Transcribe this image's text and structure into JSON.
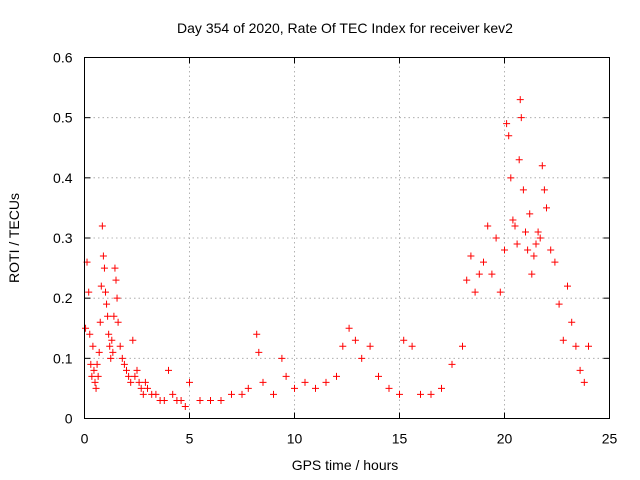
{
  "chart_data": {
    "type": "scatter",
    "title": "Day 354 of 2020, Rate Of TEC Index for receiver kev2",
    "xlabel": "GPS time / hours",
    "ylabel": "ROTI / TECUs",
    "xlim": [
      0,
      25
    ],
    "ylim": [
      0,
      0.6
    ],
    "x_ticks": [
      "0",
      "5",
      "10",
      "15",
      "20",
      "25"
    ],
    "y_ticks": [
      "0",
      "0.1",
      "0.2",
      "0.3",
      "0.4",
      "0.5",
      "0.6"
    ],
    "grid": true,
    "marker": "plus",
    "colors": {
      "points": "#ff0000",
      "grid": "#a0a0a0",
      "axis": "#000000"
    },
    "series": [
      {
        "x": [
          0.05,
          0.12,
          0.2,
          0.25,
          0.3,
          0.35,
          0.4,
          0.45,
          0.5,
          0.55,
          0.6,
          0.65,
          0.7,
          0.75,
          0.8,
          0.85,
          0.9,
          0.95,
          1.0,
          1.05,
          1.1,
          1.15,
          1.2,
          1.25,
          1.3,
          1.35,
          1.4,
          1.45,
          1.5,
          1.55,
          1.6,
          1.7,
          1.8,
          1.9,
          2.0,
          2.1,
          2.2,
          2.3,
          2.4,
          2.5,
          2.6,
          2.7,
          2.8,
          2.9,
          3.0,
          3.2,
          3.4,
          3.6,
          3.8,
          4.0,
          4.2,
          4.4,
          4.6,
          4.8,
          5.0,
          5.5,
          6.0,
          6.5,
          7.0,
          7.5,
          7.8,
          8.2,
          8.3,
          8.5,
          9.0,
          9.4,
          9.6,
          10.0,
          10.5,
          11.0,
          11.5,
          12.0,
          12.3,
          12.6,
          12.9,
          13.2,
          13.6,
          14.0,
          14.5,
          15.0,
          15.2,
          15.6,
          16.0,
          16.5,
          17.0,
          17.5,
          18.0,
          18.2,
          18.4,
          18.6,
          18.8,
          19.0,
          19.2,
          19.4,
          19.6,
          19.8,
          20.0,
          20.1,
          20.2,
          20.3,
          20.4,
          20.5,
          20.6,
          20.7,
          20.75,
          20.8,
          20.9,
          21.0,
          21.1,
          21.2,
          21.3,
          21.4,
          21.5,
          21.6,
          21.7,
          21.8,
          21.9,
          22.0,
          22.2,
          22.4,
          22.6,
          22.8,
          23.0,
          23.2,
          23.4,
          23.6,
          23.8,
          24.0
        ],
        "y": [
          0.15,
          0.26,
          0.21,
          0.14,
          0.09,
          0.07,
          0.12,
          0.08,
          0.06,
          0.05,
          0.09,
          0.07,
          0.11,
          0.16,
          0.22,
          0.32,
          0.27,
          0.25,
          0.21,
          0.19,
          0.17,
          0.14,
          0.12,
          0.1,
          0.13,
          0.11,
          0.17,
          0.25,
          0.23,
          0.2,
          0.16,
          0.12,
          0.1,
          0.09,
          0.08,
          0.07,
          0.06,
          0.13,
          0.07,
          0.08,
          0.06,
          0.05,
          0.04,
          0.06,
          0.05,
          0.04,
          0.04,
          0.03,
          0.03,
          0.08,
          0.04,
          0.03,
          0.03,
          0.02,
          0.06,
          0.03,
          0.03,
          0.03,
          0.04,
          0.04,
          0.05,
          0.14,
          0.11,
          0.06,
          0.04,
          0.1,
          0.07,
          0.05,
          0.06,
          0.05,
          0.06,
          0.07,
          0.12,
          0.15,
          0.13,
          0.1,
          0.12,
          0.07,
          0.05,
          0.04,
          0.13,
          0.12,
          0.04,
          0.04,
          0.05,
          0.09,
          0.12,
          0.23,
          0.27,
          0.21,
          0.24,
          0.26,
          0.32,
          0.24,
          0.3,
          0.21,
          0.28,
          0.49,
          0.47,
          0.4,
          0.33,
          0.32,
          0.29,
          0.43,
          0.53,
          0.5,
          0.38,
          0.31,
          0.28,
          0.34,
          0.24,
          0.27,
          0.29,
          0.31,
          0.3,
          0.42,
          0.38,
          0.35,
          0.28,
          0.26,
          0.19,
          0.13,
          0.22,
          0.16,
          0.12,
          0.08,
          0.06,
          0.12
        ]
      }
    ]
  }
}
